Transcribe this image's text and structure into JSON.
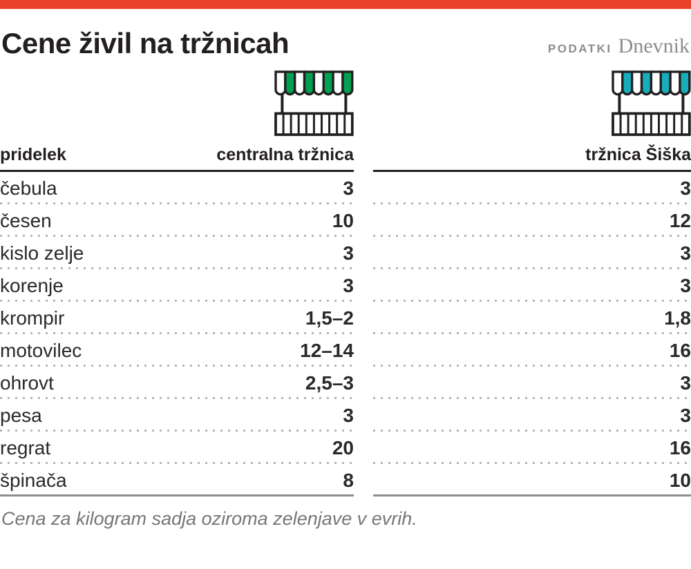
{
  "header": {
    "title": "Cene živil na tržnicah",
    "source_label": "PODATKI",
    "source_name": "Dnevnik"
  },
  "table": {
    "product_header": "pridelek"
  },
  "chart_data": {
    "type": "table",
    "title": "Cene živil na tržnicah",
    "categories": [
      "čebula",
      "česen",
      "kislo zelje",
      "korenje",
      "krompir",
      "motovilec",
      "ohrovt",
      "pesa",
      "regrat",
      "špinača"
    ],
    "series": [
      {
        "name": "centralna tržnica",
        "values": [
          "3",
          "10",
          "3",
          "3",
          "1,5–2",
          "12–14",
          "2,5–3",
          "3",
          "20",
          "8"
        ]
      },
      {
        "name": "tržnica Šiška",
        "values": [
          "3",
          "12",
          "3",
          "3",
          "1,8",
          "16",
          "3",
          "3",
          "16",
          "10"
        ]
      }
    ],
    "note": "Cena za kilogram sadja oziroma zelenjave v evrih."
  },
  "colors": {
    "top_bar": "#e8432a",
    "central_accent": "#00a152",
    "siska_accent": "#18adbb",
    "ink": "#231f20"
  }
}
